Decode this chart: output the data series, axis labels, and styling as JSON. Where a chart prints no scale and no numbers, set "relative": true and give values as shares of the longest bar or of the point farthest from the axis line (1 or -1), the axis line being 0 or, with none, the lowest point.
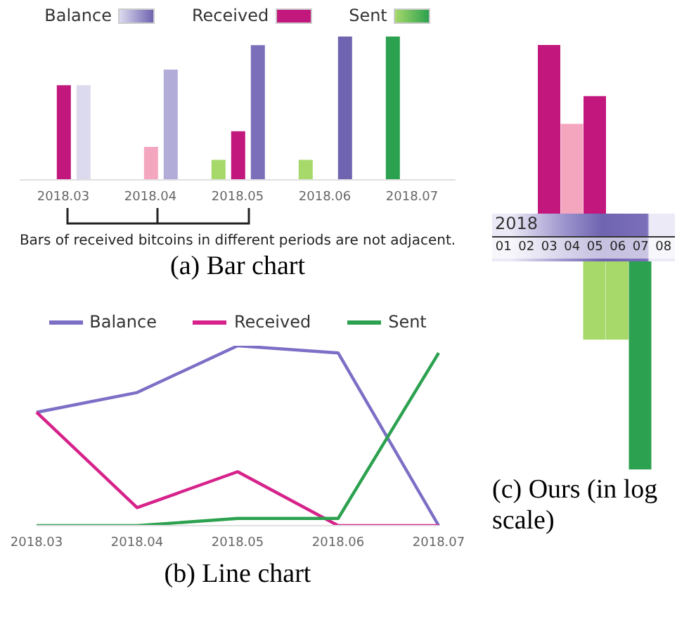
{
  "chart_data": [
    {
      "type": "bar",
      "title": "(a) Bar chart",
      "relative": true,
      "legend": "top",
      "categories": [
        "2018.03",
        "2018.04",
        "2018.05",
        "2018.06",
        "2018.07"
      ],
      "series": [
        {
          "name": "Sent",
          "color": "#2ca14f",
          "colors": [
            "#a6d86a",
            "#a6d86a",
            "#a6d86a",
            "#a6d86a",
            "#2ca14f"
          ],
          "values": [
            0,
            0,
            0.14,
            0.14,
            1.0
          ]
        },
        {
          "name": "Received",
          "color": "#c2187e",
          "colors": [
            "#c2187e",
            "#f4a6bf",
            "#c2187e",
            "#c2187e",
            "#c2187e"
          ],
          "values": [
            0.66,
            0.23,
            0.34,
            0,
            0
          ]
        },
        {
          "name": "Balance",
          "color": "#6f64b0",
          "colors": [
            "#dcdaee",
            "#b1acd8",
            "#7b6fba",
            "#6f64b0",
            "#6f64b0"
          ],
          "values": [
            0.66,
            0.77,
            0.94,
            1.0,
            0
          ]
        }
      ],
      "annotations": [
        "Bars of received bitcoins in different periods are not adjacent."
      ]
    },
    {
      "type": "line",
      "title": "(b) Line chart",
      "relative": true,
      "legend": "top",
      "marker": "none",
      "categories": [
        "2018.03",
        "2018.04",
        "2018.05",
        "2018.06",
        "2018.07"
      ],
      "series": [
        {
          "name": "Balance",
          "color": "#7b6fc6",
          "values": [
            0.63,
            0.74,
            1.0,
            0.96,
            0
          ]
        },
        {
          "name": "Received",
          "color": "#d6228a",
          "values": [
            0.63,
            0.1,
            0.3,
            0,
            0
          ]
        },
        {
          "name": "Sent",
          "color": "#2ca14f",
          "values": [
            0,
            0,
            0.04,
            0.04,
            0.96
          ]
        }
      ]
    },
    {
      "type": "bar",
      "title": "(c) Ours (in log scale)",
      "relative": true,
      "xlabel": "2018",
      "categories": [
        "01",
        "02",
        "03",
        "04",
        "05",
        "06",
        "07",
        "08"
      ],
      "series": [
        {
          "color": "#c2187e",
          "colors": [
            "#c2187e",
            "#c2187e",
            "#c2187e",
            "#f4a6bf",
            "#c2187e",
            "#c2187e",
            "#c2187e",
            "#c2187e"
          ],
          "values": [
            0,
            0,
            0.83,
            0.49,
            0.61,
            0,
            0,
            0
          ]
        },
        {
          "color": "#2ca14f",
          "colors": [
            "#a6d86a",
            "#a6d86a",
            "#a6d86a",
            "#a6d86a",
            "#a6d86a",
            "#a6d86a",
            "#2ca14f",
            "#2ca14f"
          ],
          "values": [
            0,
            0,
            0,
            0,
            -0.44,
            -0.44,
            -1.0,
            0
          ]
        }
      ]
    }
  ]
}
